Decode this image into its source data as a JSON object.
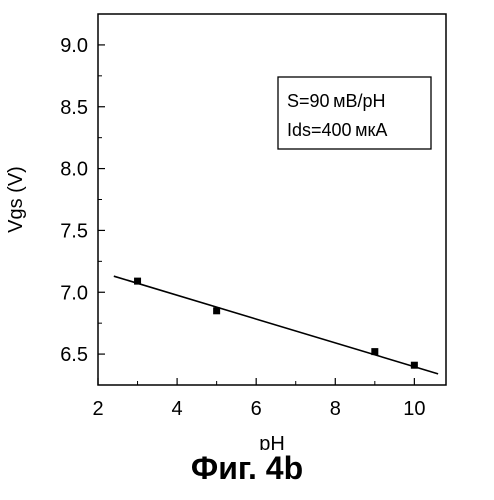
{
  "chart_data": {
    "type": "scatter",
    "xlabel": "pH",
    "ylabel": "Vgs (V)",
    "xlim": [
      2,
      10.8
    ],
    "ylim": [
      6.25,
      9.25
    ],
    "x_ticks": [
      2,
      4,
      6,
      8,
      10
    ],
    "y_ticks": [
      6.5,
      7.0,
      7.5,
      8.0,
      8.5,
      9.0
    ],
    "y_tick_labels": [
      "6.5",
      "7.0",
      "7.5",
      "8.0",
      "8.5",
      "9.0"
    ],
    "points": [
      {
        "x": 3,
        "y": 7.09
      },
      {
        "x": 5,
        "y": 6.85
      },
      {
        "x": 9,
        "y": 6.52
      },
      {
        "x": 10,
        "y": 6.41
      }
    ],
    "fit_line": {
      "x": [
        2.4,
        10.6
      ],
      "y": [
        7.13,
        6.34
      ]
    },
    "annotation": [
      "S=90 мВ/pH",
      "Ids=400 мкА"
    ],
    "grid": false
  },
  "caption": "Фиг. 4b"
}
